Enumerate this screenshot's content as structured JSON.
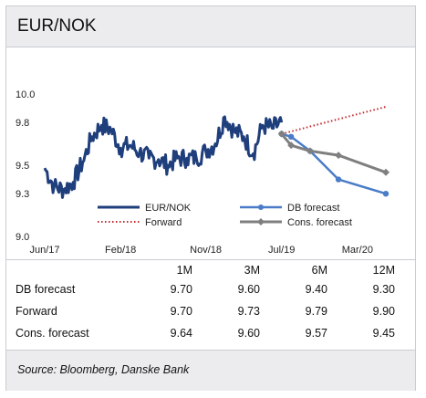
{
  "title": "EUR/NOK",
  "colors": {
    "eurnok": "#1f3e7c",
    "forward": "#c0282d",
    "db_forecast": "#4a7cc8",
    "cons_forecast": "#7f7f7f",
    "background_bar": "#ececef"
  },
  "chart_data": {
    "type": "line",
    "title": "EUR/NOK",
    "xlabel": "",
    "ylabel": "",
    "y_ticks": [
      "9.0",
      "9.3",
      "9.5",
      "9.8",
      "10.0"
    ],
    "ylim": [
      9.0,
      10.0
    ],
    "x_ticks": [
      "Jun/17",
      "Feb/18",
      "Nov/18",
      "Jul/19",
      "Mar/20"
    ],
    "xlim": [
      "2017-06",
      "2020-06"
    ],
    "grid": false,
    "legend_position": "bottom-inside",
    "series": [
      {
        "name": "EUR/NOK",
        "style": "solid-thick",
        "x": [
          "2017-06",
          "2017-07",
          "2017-08",
          "2017-09",
          "2017-10",
          "2017-11",
          "2017-12",
          "2018-01",
          "2018-02",
          "2018-03",
          "2018-04",
          "2018-05",
          "2018-06",
          "2018-07",
          "2018-08",
          "2018-09",
          "2018-10",
          "2018-11",
          "2018-12",
          "2019-01",
          "2019-02",
          "2019-03",
          "2019-04",
          "2019-05",
          "2019-06",
          "2019-07"
        ],
        "y": [
          9.48,
          9.35,
          9.33,
          9.38,
          9.52,
          9.7,
          9.78,
          9.75,
          9.62,
          9.64,
          9.59,
          9.55,
          9.54,
          9.5,
          9.55,
          9.55,
          9.55,
          9.6,
          9.65,
          9.84,
          9.74,
          9.7,
          9.58,
          9.78,
          9.76,
          9.8
        ]
      },
      {
        "name": "Forward",
        "style": "dotted",
        "x": [
          "2019-07",
          "2020-06"
        ],
        "y": [
          9.72,
          9.91
        ]
      },
      {
        "name": "DB forecast",
        "style": "solid-marker",
        "x": [
          "2019-07",
          "2019-08",
          "2019-10",
          "2020-01",
          "2020-06"
        ],
        "y": [
          9.72,
          9.7,
          9.6,
          9.4,
          9.3
        ]
      },
      {
        "name": "Cons. forecast",
        "style": "solid-marker",
        "x": [
          "2019-07",
          "2019-08",
          "2019-10",
          "2020-01",
          "2020-06"
        ],
        "y": [
          9.72,
          9.64,
          9.6,
          9.57,
          9.45
        ]
      }
    ]
  },
  "table": {
    "headers": [
      "",
      "1M",
      "3M",
      "6M",
      "12M"
    ],
    "rows": [
      {
        "label": "DB forecast",
        "values": [
          "9.70",
          "9.60",
          "9.40",
          "9.30"
        ]
      },
      {
        "label": "Forward",
        "values": [
          "9.70",
          "9.73",
          "9.79",
          "9.90"
        ]
      },
      {
        "label": "Cons. forecast",
        "values": [
          "9.64",
          "9.60",
          "9.57",
          "9.45"
        ]
      }
    ]
  },
  "source": "Source: Bloomberg, Danske Bank"
}
